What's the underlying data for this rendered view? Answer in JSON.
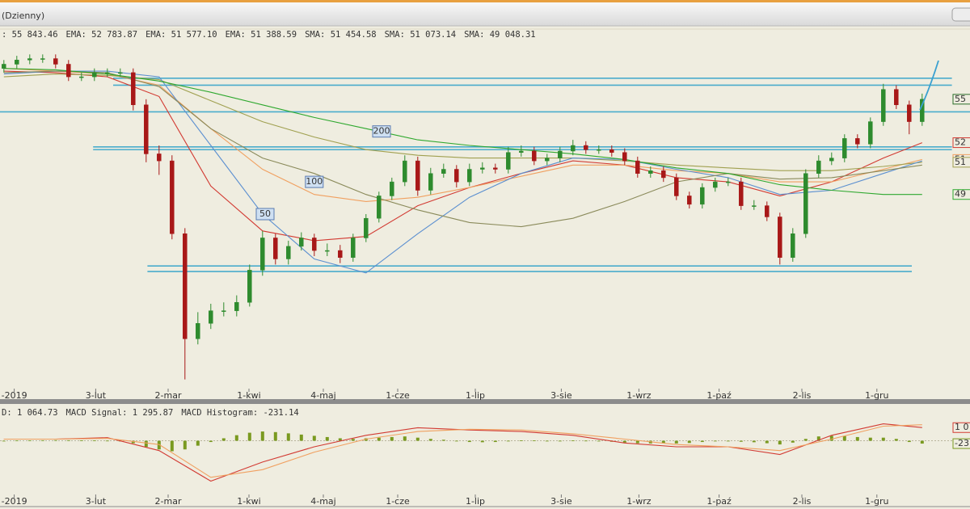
{
  "window": {
    "title": "(Dzienny)"
  },
  "chart_data": [
    {
      "type": "candlestick",
      "name": ": 55 843.46",
      "color": "#2a6e2a",
      "badge": "55",
      "up_color": "#2e8b2e",
      "down_color": "#a81818",
      "xlim": [
        -0.3,
        74.7
      ],
      "ylim": [
        35.2,
        60
      ],
      "xticks": [
        {
          "value": 0.8,
          "label": "-2019"
        },
        {
          "value": 7.1,
          "label": "3-lut"
        },
        {
          "value": 12.7,
          "label": "2-mar"
        },
        {
          "value": 18.95,
          "label": "1-kwi"
        },
        {
          "value": 24.7,
          "label": "4-maj"
        },
        {
          "value": 30.45,
          "label": "1-cze"
        },
        {
          "value": 36.45,
          "label": "1-lip"
        },
        {
          "value": 43.1,
          "label": "3-sie"
        },
        {
          "value": 49.1,
          "label": "1-wrz"
        },
        {
          "value": 55.3,
          "label": "1-paź"
        },
        {
          "value": 61.7,
          "label": "2-lis"
        },
        {
          "value": 67.5,
          "label": "1-gru"
        }
      ],
      "open": [
        58.0,
        58.3,
        58.6,
        58.7,
        58.7,
        58.3,
        57.4,
        57.4,
        57.7,
        57.7,
        57.7,
        55.4,
        51.9,
        51.4,
        46.2,
        38.7,
        39.8,
        40.7,
        40.7,
        41.3,
        43.6,
        45.9,
        44.4,
        45.3,
        45.9,
        45.0,
        45.0,
        44.5,
        45.9,
        47.3,
        48.9,
        49.9,
        51.4,
        49.3,
        50.5,
        50.8,
        49.9,
        50.8,
        50.9,
        50.8,
        52.0,
        52.1,
        51.4,
        51.6,
        52.1,
        52.5,
        52.2,
        52.2,
        52.0,
        51.4,
        50.5,
        50.7,
        50.2,
        48.9,
        48.3,
        49.5,
        49.9,
        49.9,
        48.2,
        48.2,
        47.4,
        44.5,
        46.2,
        50.5,
        51.4,
        51.6,
        53.0,
        52.6,
        54.2,
        56.5,
        55.4,
        54.2
      ],
      "high": [
        58.6,
        58.9,
        59.0,
        59.0,
        59.0,
        58.6,
        57.7,
        58.0,
        58.0,
        58.0,
        58.0,
        55.8,
        52.5,
        51.8,
        46.6,
        40.6,
        41.2,
        41.3,
        41.8,
        44.0,
        46.4,
        46.2,
        45.7,
        46.3,
        46.2,
        45.5,
        45.4,
        46.2,
        47.6,
        49.2,
        50.2,
        51.8,
        51.7,
        50.9,
        51.2,
        51.1,
        51.2,
        51.3,
        51.2,
        52.4,
        52.5,
        52.4,
        51.9,
        52.4,
        52.9,
        52.8,
        52.5,
        52.5,
        52.3,
        51.7,
        51.0,
        51.0,
        50.5,
        49.2,
        49.8,
        50.2,
        50.2,
        50.2,
        48.6,
        48.5,
        47.7,
        46.6,
        50.8,
        51.8,
        52.0,
        53.3,
        53.3,
        54.5,
        56.9,
        56.8,
        55.7,
        56.2
      ],
      "low": [
        57.7,
        58.0,
        58.3,
        58.4,
        58.0,
        57.1,
        57.1,
        57.1,
        57.4,
        57.4,
        55.0,
        51.3,
        50.4,
        45.8,
        35.8,
        38.3,
        39.4,
        40.3,
        40.3,
        41.0,
        43.2,
        44.0,
        44.0,
        45.0,
        44.6,
        44.6,
        44.1,
        44.2,
        45.6,
        47.0,
        48.6,
        49.6,
        48.9,
        49.0,
        50.2,
        49.5,
        49.6,
        50.5,
        50.5,
        50.5,
        51.7,
        51.1,
        51.1,
        51.3,
        51.8,
        51.9,
        51.9,
        51.7,
        51.1,
        50.2,
        50.2,
        49.9,
        48.6,
        48.0,
        48.0,
        49.2,
        49.6,
        47.9,
        47.9,
        47.1,
        44.0,
        44.2,
        45.9,
        50.2,
        51.1,
        51.3,
        52.3,
        52.3,
        53.9,
        55.1,
        53.3,
        53.9
      ],
      "close": [
        58.3,
        58.6,
        58.7,
        58.7,
        58.3,
        57.4,
        57.4,
        57.7,
        57.7,
        57.7,
        55.4,
        51.9,
        51.4,
        46.2,
        38.7,
        39.8,
        40.7,
        40.7,
        41.3,
        43.6,
        45.9,
        44.4,
        45.3,
        45.9,
        45.0,
        45.0,
        44.5,
        45.9,
        47.3,
        48.9,
        49.9,
        51.4,
        49.3,
        50.5,
        50.8,
        49.9,
        50.8,
        50.9,
        50.8,
        52.0,
        52.1,
        51.4,
        51.6,
        52.1,
        52.5,
        52.2,
        52.2,
        52.0,
        51.4,
        50.5,
        50.7,
        50.2,
        48.9,
        48.3,
        49.5,
        49.9,
        49.9,
        48.2,
        48.2,
        47.4,
        44.5,
        46.2,
        50.5,
        51.4,
        51.6,
        53.0,
        52.6,
        54.2,
        56.5,
        55.4,
        54.2,
        55.8
      ],
      "ma_x": [
        0,
        4,
        8,
        12,
        16,
        20,
        24,
        28,
        32,
        36,
        40,
        44,
        48,
        52,
        56,
        60,
        64,
        68,
        71
      ],
      "series": [
        {
          "name": "EMA: 52 783.87",
          "color": "#d23a32",
          "badge": "52",
          "values": [
            57.8,
            57.7,
            57.4,
            56.0,
            49.6,
            46.4,
            45.7,
            46.0,
            48.2,
            49.5,
            50.5,
            51.4,
            51.1,
            50.2,
            49.9,
            48.9,
            49.9,
            51.6,
            52.7
          ]
        },
        {
          "name": "EMA: 51 577.10",
          "color": "#f0a060",
          "badge": "51",
          "values": [
            58.0,
            57.8,
            57.6,
            56.8,
            53.7,
            50.8,
            49.0,
            48.5,
            48.8,
            49.5,
            50.3,
            51.1,
            51.1,
            50.7,
            50.5,
            49.9,
            49.9,
            50.8,
            51.5
          ]
        },
        {
          "name": "EMA: 51 388.59",
          "color": "#a0a050",
          "badge": "51",
          "values": [
            57.4,
            57.6,
            57.5,
            57.2,
            55.7,
            54.2,
            53.1,
            52.2,
            51.8,
            51.6,
            51.6,
            51.6,
            51.4,
            51.1,
            50.9,
            50.7,
            50.7,
            51.0,
            51.3
          ]
        },
        {
          "name": "SMA: 51 454.58",
          "color": "#5b8fd0",
          "values": [
            57.6,
            57.8,
            57.8,
            57.4,
            52.5,
            47.6,
            44.4,
            43.4,
            46.2,
            48.8,
            50.5,
            51.6,
            51.5,
            50.8,
            50.2,
            49.0,
            49.3,
            50.5,
            51.4
          ]
        },
        {
          "name": "SMA: 51 073.14",
          "color": "#8a8a5a",
          "values": [
            57.7,
            57.8,
            57.7,
            56.7,
            53.7,
            51.6,
            50.5,
            49.0,
            47.9,
            47.0,
            46.7,
            47.3,
            48.5,
            49.9,
            50.5,
            50.1,
            50.2,
            50.7,
            51.1
          ]
        },
        {
          "name": "SMA: 49 048.31",
          "color": "#2ea82e",
          "badge": "49",
          "values": [
            58.0,
            57.9,
            57.6,
            57.1,
            56.3,
            55.4,
            54.5,
            53.7,
            52.9,
            52.5,
            52.2,
            51.9,
            51.5,
            50.9,
            50.5,
            49.7,
            49.3,
            49.0,
            49.0
          ]
        }
      ],
      "level_color": "#4aaccc",
      "levels": [
        {
          "value": 57.3,
          "from": 8.45,
          "to": 73.3
        },
        {
          "value": 56.8,
          "from": 8.45,
          "to": 73.3
        },
        {
          "value": 54.9,
          "from": -0.3,
          "to": 74.7
        },
        {
          "value": 52.4,
          "from": 6.9,
          "to": 73.3
        },
        {
          "value": 52.2,
          "from": 6.9,
          "to": 73.3
        },
        {
          "value": 43.9,
          "from": 11.1,
          "to": 70.2
        },
        {
          "value": 43.5,
          "from": 11.1,
          "to": 70.2
        }
      ],
      "annotations": [
        {
          "text": "200",
          "x": 29.2,
          "y": 53.5
        },
        {
          "text": "100",
          "x": 24.0,
          "y": 49.9
        },
        {
          "text": "50",
          "x": 20.2,
          "y": 47.6
        }
      ]
    },
    {
      "type": "macd",
      "ylim": [
        -5000,
        1800
      ],
      "series": [
        {
          "name": "D: 1 064.73",
          "color": "#d23a32",
          "badge": "1 0",
          "values": [
            130,
            130,
            253,
            -797,
            -3269,
            -1724,
            -488,
            439,
            1057,
            871,
            748,
            439,
            -179,
            -488,
            -488,
            -1107,
            439,
            1366,
            1064.73
          ]
        },
        {
          "name": "MACD Signal: 1 295.87",
          "color": "#f0a060",
          "values": [
            130,
            130,
            192,
            -303,
            -2960,
            -2342,
            -921,
            130,
            748,
            933,
            871,
            562,
            130,
            -303,
            -488,
            -797,
            130,
            1180,
            1295.87
          ]
        }
      ],
      "histogram": {
        "name": "MACD Histogram: -231.14",
        "color": "#7a9a20",
        "badge": "-23",
        "values": [
          0,
          20,
          30,
          40,
          50,
          40,
          30,
          20,
          10,
          0,
          -200,
          -500,
          -700,
          -850,
          -700,
          -400,
          -100,
          200,
          450,
          650,
          750,
          700,
          600,
          500,
          400,
          300,
          200,
          150,
          200,
          250,
          300,
          350,
          250,
          150,
          80,
          -50,
          -100,
          -120,
          -100,
          -50,
          30,
          20,
          -40,
          -20,
          20,
          10,
          -40,
          -80,
          -150,
          -200,
          -220,
          -200,
          -220,
          -180,
          -100,
          -50,
          0,
          -80,
          -120,
          -200,
          -300,
          -150,
          150,
          350,
          400,
          380,
          300,
          250,
          250,
          150,
          -100,
          -231.14
        ]
      }
    }
  ]
}
